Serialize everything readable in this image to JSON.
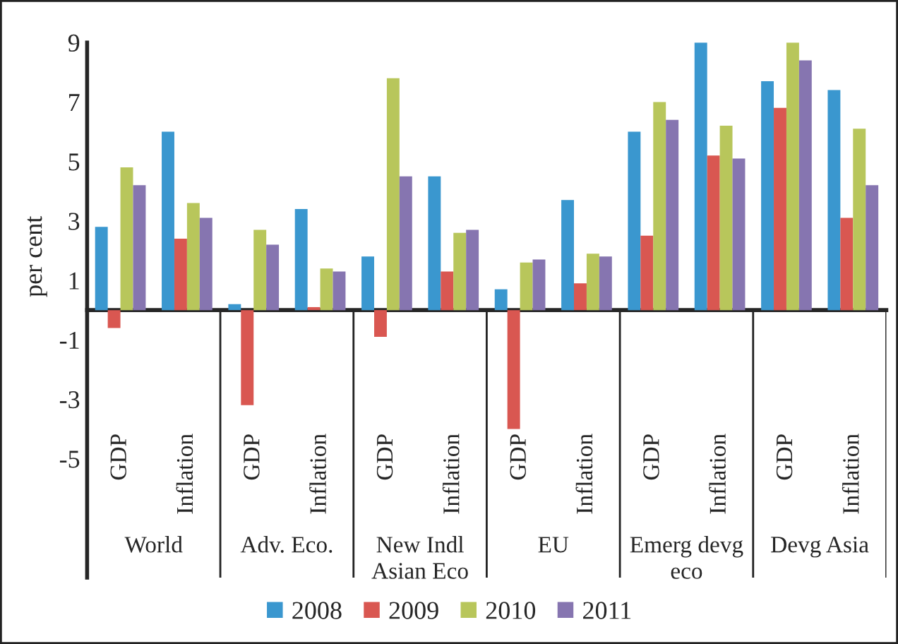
{
  "chart_data": {
    "type": "bar",
    "ylabel": "per cent",
    "categories": [
      "GDP",
      "Inflation",
      "GDP",
      "Inflation",
      "GDP",
      "Inflation",
      "GDP",
      "Inflation",
      "GDP",
      "Inflation",
      "GDP",
      "Inflation"
    ],
    "annotations": [
      "World",
      "Adv. Eco.",
      "New Indl\nAsian Eco",
      "EU",
      "Emerg devg\neco",
      "Devg Asia"
    ],
    "series": [
      {
        "name": "2008",
        "color": "#3a97cf",
        "values": [
          2.8,
          6.0,
          0.2,
          3.4,
          1.8,
          4.5,
          0.7,
          3.7,
          6.0,
          9.0,
          7.7,
          7.4
        ]
      },
      {
        "name": "2009",
        "color": "#d95751",
        "values": [
          -0.6,
          2.4,
          -3.2,
          0.1,
          -0.9,
          1.3,
          -4.0,
          0.9,
          2.5,
          5.2,
          6.8,
          3.1
        ]
      },
      {
        "name": "2010",
        "color": "#b8c65b",
        "values": [
          4.8,
          3.6,
          2.7,
          1.4,
          7.8,
          2.6,
          1.6,
          1.9,
          7.0,
          6.2,
          9.0,
          6.1
        ]
      },
      {
        "name": "2011",
        "color": "#8675b0",
        "values": [
          4.2,
          3.1,
          2.2,
          1.3,
          4.5,
          2.7,
          1.7,
          1.8,
          6.4,
          5.1,
          8.4,
          4.2
        ]
      }
    ],
    "ylim": [
      -9,
      9
    ],
    "yticks": [
      -5,
      -3,
      -1,
      1,
      3,
      5,
      7,
      9
    ],
    "grid": false,
    "legend": "bottom"
  }
}
